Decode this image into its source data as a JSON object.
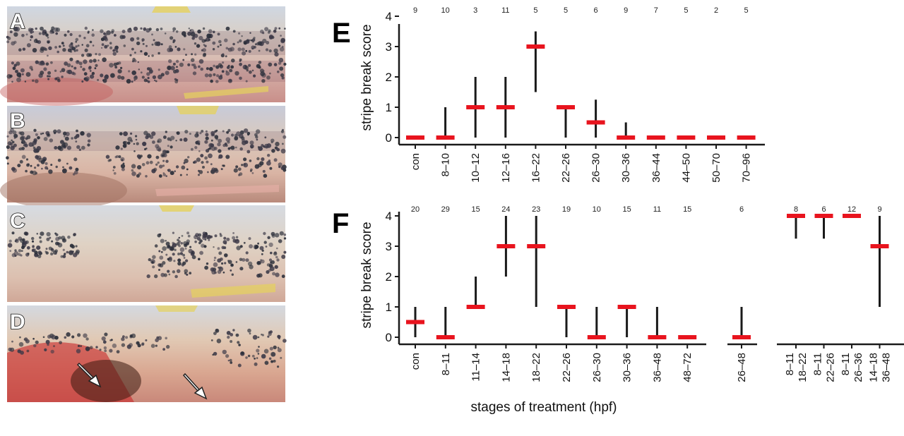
{
  "photo_panels": [
    {
      "label": "A"
    },
    {
      "label": "B"
    },
    {
      "label": "C"
    },
    {
      "label": "D"
    }
  ],
  "colors": {
    "median": "#e8141e",
    "range": "#1a1a1a",
    "axis": "#1a1a1a"
  },
  "chart_data": [
    {
      "panel": "E",
      "type": "range-median",
      "ylabel": "stripe break score",
      "ylim": [
        0,
        4
      ],
      "yticks": [
        0,
        1,
        2,
        3,
        4
      ],
      "categories": [
        "con",
        "8–10",
        "10–12",
        "12–16",
        "16–22",
        "22–26",
        "26–30",
        "30–36",
        "36–44",
        "44–50",
        "50–70",
        "70–96"
      ],
      "n": [
        "9",
        "10",
        "3",
        "11",
        "5",
        "5",
        "6",
        "9",
        "7",
        "5",
        "2",
        "5"
      ],
      "median": [
        0,
        0,
        1,
        1,
        3,
        1,
        0.5,
        0,
        0,
        0,
        0,
        0
      ],
      "min": [
        0,
        0,
        0,
        0,
        1.5,
        0,
        0,
        0,
        0,
        0,
        0,
        0
      ],
      "max": [
        0,
        1,
        2,
        2,
        3.5,
        1,
        1.25,
        0.5,
        0,
        0,
        0,
        0
      ]
    },
    {
      "panel": "F",
      "type": "range-median",
      "ylabel": "stripe break score",
      "xlabel": "stages of treatment (hpf)",
      "ylim": [
        0,
        4
      ],
      "yticks": [
        0,
        1,
        2,
        3,
        4
      ],
      "groups": [
        {
          "categories": [
            "con",
            "8–11",
            "11–14",
            "14–18",
            "18–22",
            "22–26",
            "26–30",
            "30–36",
            "36–48",
            "48–72"
          ],
          "n": [
            "20",
            "29",
            "15",
            "24",
            "23",
            "19",
            "10",
            "15",
            "11",
            "15"
          ],
          "median": [
            0.5,
            0,
            1,
            3,
            3,
            1,
            0,
            1,
            0,
            0
          ],
          "min": [
            0,
            0,
            1,
            2,
            1,
            0,
            0,
            0,
            0,
            0
          ],
          "max": [
            1,
            1,
            2,
            4,
            4,
            1,
            1,
            1,
            1,
            0
          ]
        },
        {
          "categories": [
            "26–48"
          ],
          "n": [
            "6"
          ],
          "median": [
            0
          ],
          "min": [
            0
          ],
          "max": [
            1
          ]
        },
        {
          "categories": [
            [
              "8–11",
              "18–22"
            ],
            [
              "8–11",
              "22–26"
            ],
            [
              "8–11",
              "26–36"
            ],
            [
              "14–18",
              "36–48"
            ]
          ],
          "n": [
            "8",
            "6",
            "12",
            "9"
          ],
          "median": [
            4,
            4,
            4,
            3
          ],
          "min": [
            3.25,
            3.25,
            4,
            1
          ],
          "max": [
            4,
            4,
            4,
            4
          ]
        }
      ]
    }
  ]
}
